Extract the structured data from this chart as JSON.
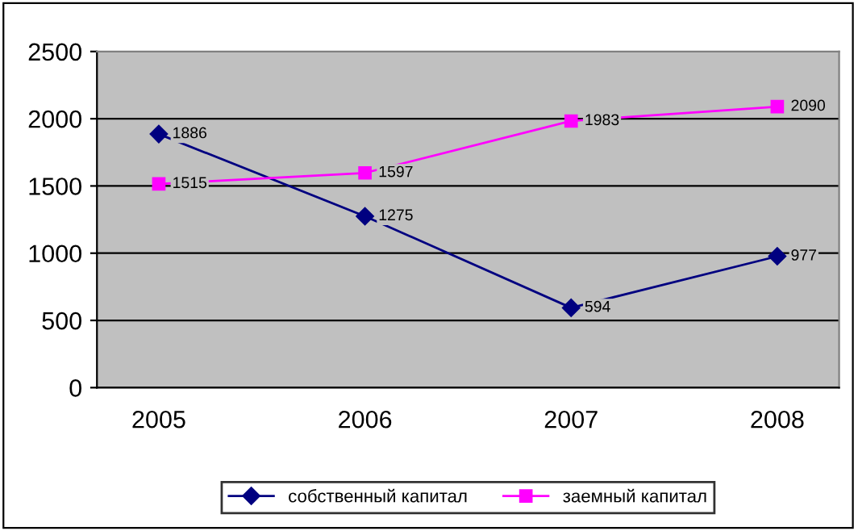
{
  "chart_data": {
    "type": "line",
    "categories": [
      "2005",
      "2006",
      "2007",
      "2008"
    ],
    "series": [
      {
        "name": "собственный капитал",
        "color": "#000080",
        "marker": "diamond",
        "values": [
          1886,
          1275,
          594,
          977
        ]
      },
      {
        "name": "заемный капитал",
        "color": "#ff00ff",
        "marker": "square",
        "values": [
          1515,
          1597,
          1983,
          2090
        ]
      }
    ],
    "ylim": [
      0,
      2500
    ],
    "yticks": [
      0,
      500,
      1000,
      1500,
      2000,
      2500
    ],
    "grid": "y",
    "legend": "bottom",
    "data_labels": true,
    "line_style": "solid"
  }
}
